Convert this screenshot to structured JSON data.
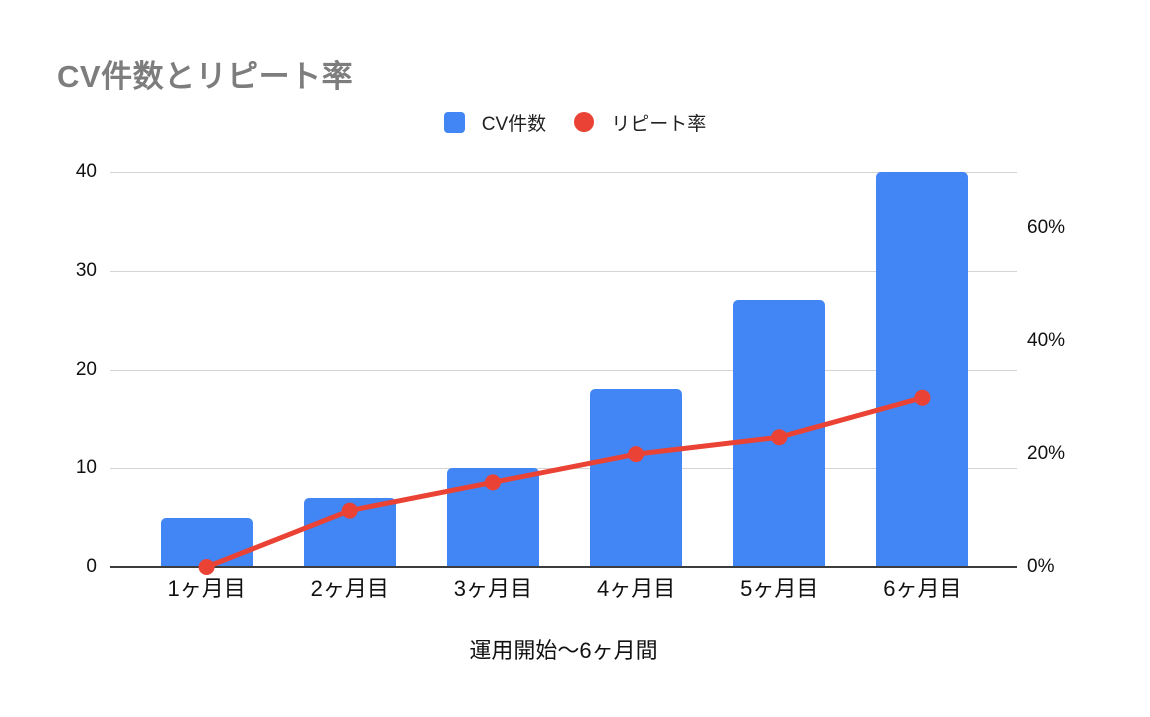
{
  "chart_data": {
    "type": "combo-bar-line",
    "title": "CV件数とリピート率",
    "xlabel": "運用開始〜6ヶ月間",
    "categories": [
      "1ヶ月目",
      "2ヶ月目",
      "3ヶ月目",
      "4ヶ月目",
      "5ヶ月目",
      "6ヶ月目"
    ],
    "series": [
      {
        "name": "CV件数",
        "type": "bar",
        "axis": "left",
        "color": "#4285F4",
        "values": [
          5,
          7,
          10,
          18,
          27,
          40
        ]
      },
      {
        "name": "リピート率",
        "type": "line",
        "axis": "right",
        "color": "#EA4335",
        "unit": "%",
        "values": [
          0,
          10,
          15,
          20,
          23,
          30
        ]
      }
    ],
    "left_axis": {
      "min": 0,
      "max": 40,
      "ticks": [
        0,
        10,
        20,
        30,
        40
      ]
    },
    "right_axis": {
      "min": 0,
      "max": 70,
      "ticks": [
        0,
        20,
        40,
        60
      ],
      "suffix": "%"
    },
    "legend_position": "top",
    "grid": true,
    "colors": {
      "bar": "#4285F4",
      "line": "#EA4335",
      "gridline": "#d4d4d4",
      "axis_line": "#3c3c3c",
      "title_text": "#7d7d7d",
      "label_text": "#111111"
    }
  }
}
